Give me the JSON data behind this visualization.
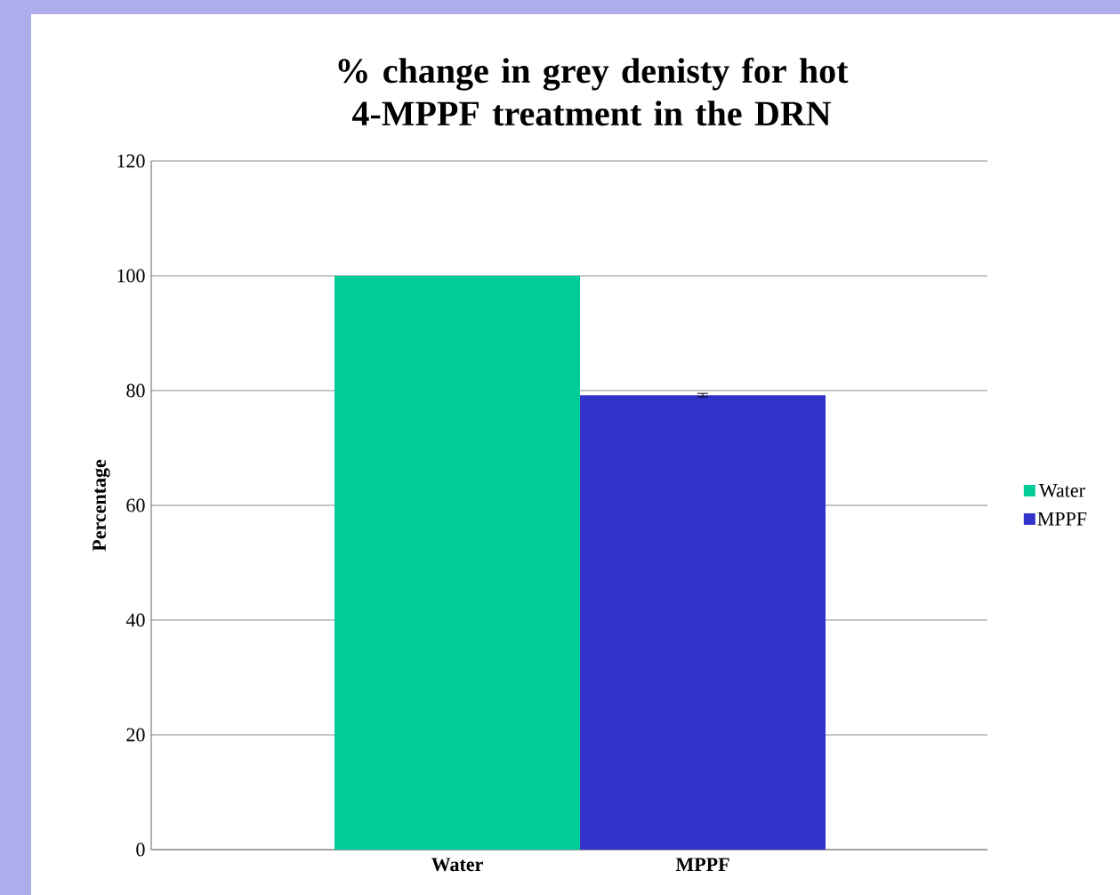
{
  "chart_data": {
    "type": "bar",
    "title": "% change in grey denisty for hot 4-MPPF treatment in the DRN",
    "ylabel": "Percentage",
    "categories": [
      "Water",
      "MPPF"
    ],
    "series": [
      {
        "name": "Water",
        "color": "#00cc99",
        "values": [
          100,
          null
        ]
      },
      {
        "name": "MPPF",
        "color": "#3333cc",
        "values": [
          null,
          79.2
        ],
        "errors": [
          null,
          0.3
        ]
      }
    ],
    "ylim": [
      0,
      120
    ],
    "yticks": [
      0,
      20,
      40,
      60,
      80,
      100,
      120
    ],
    "grid": "y",
    "legend": "right"
  }
}
